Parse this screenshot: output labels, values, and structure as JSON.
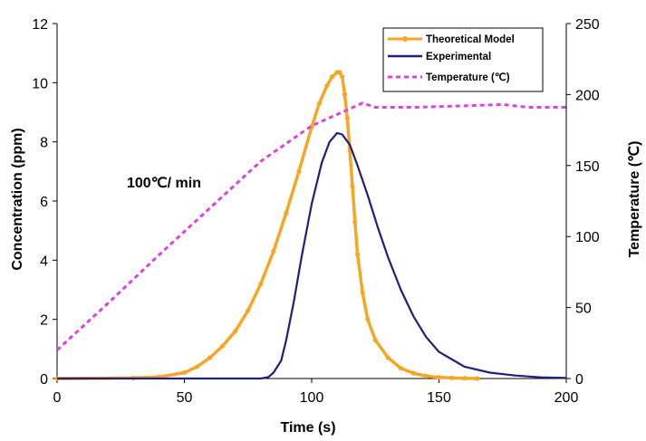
{
  "chart_data": {
    "type": "line",
    "xlabel": "Time  (s)",
    "ylabel": "Concentration (ppm)",
    "y2label": "Temperature (℃)",
    "xlim": [
      0,
      200
    ],
    "ylim": [
      0,
      12
    ],
    "y2lim": [
      0,
      250
    ],
    "xticks": [
      "0",
      "50",
      "100",
      "150",
      "200"
    ],
    "yticks": [
      "0",
      "2",
      "4",
      "6",
      "8",
      "10",
      "12"
    ],
    "y2ticks": [
      "0",
      "50",
      "100",
      "150",
      "200",
      "250"
    ],
    "grid": false,
    "legend_position": "top-right",
    "annotation": "100℃/ min",
    "series": [
      {
        "name": "Theoretical Model",
        "axis": "left",
        "color": "#F5A623",
        "style": "solid-with-markers",
        "x": [
          0,
          30,
          40,
          50,
          55,
          60,
          65,
          70,
          75,
          80,
          85,
          90,
          95,
          100,
          103,
          106,
          108,
          110,
          111,
          112,
          113,
          114,
          115,
          116,
          117,
          118,
          120,
          122,
          125,
          130,
          135,
          140,
          145,
          150,
          155,
          160,
          165
        ],
        "y": [
          0.0,
          0.02,
          0.05,
          0.2,
          0.4,
          0.7,
          1.1,
          1.6,
          2.3,
          3.2,
          4.3,
          5.6,
          7.0,
          8.5,
          9.3,
          9.9,
          10.2,
          10.35,
          10.35,
          10.2,
          9.6,
          8.8,
          7.7,
          6.5,
          5.3,
          4.2,
          2.9,
          2.0,
          1.3,
          0.7,
          0.35,
          0.18,
          0.08,
          0.04,
          0.02,
          0.01,
          0.0
        ]
      },
      {
        "name": "Experimental",
        "axis": "left",
        "color": "#1F1F80",
        "style": "solid",
        "x": [
          0,
          50,
          80,
          83,
          85,
          88,
          90,
          93,
          96,
          100,
          104,
          107,
          110,
          112,
          115,
          118,
          122,
          126,
          130,
          135,
          140,
          145,
          150,
          160,
          170,
          180,
          190,
          200
        ],
        "y": [
          0.0,
          0.0,
          0.0,
          0.05,
          0.2,
          0.6,
          1.3,
          2.6,
          4.1,
          5.9,
          7.3,
          8.0,
          8.3,
          8.25,
          7.9,
          7.2,
          6.2,
          5.1,
          4.1,
          3.0,
          2.1,
          1.4,
          0.9,
          0.4,
          0.2,
          0.1,
          0.04,
          0.02
        ]
      },
      {
        "name": "Temperature (℃)",
        "axis": "right",
        "color": "#E040E0",
        "style": "dashed",
        "x": [
          0,
          20,
          40,
          60,
          80,
          100,
          110,
          115,
          120,
          125,
          140,
          160,
          175,
          185,
          200
        ],
        "y": [
          20,
          53,
          87,
          120,
          153,
          178,
          186,
          190,
          194,
          191,
          191,
          192,
          193,
          191,
          191
        ]
      }
    ]
  }
}
